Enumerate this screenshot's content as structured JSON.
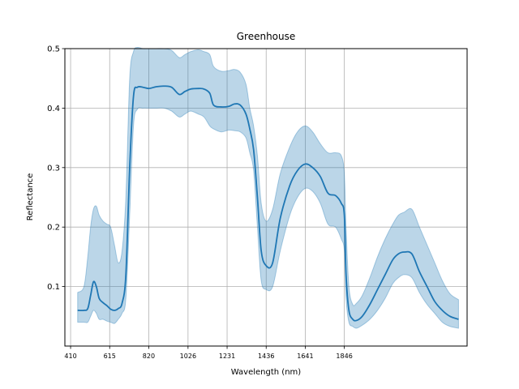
{
  "chart_data": {
    "type": "line",
    "title": "Greenhouse",
    "xlabel": "Wavelength (nm)",
    "ylabel": "Reflectance",
    "xlim": [
      380,
      2490
    ],
    "ylim": [
      0.0,
      0.5
    ],
    "x_ticks": [
      410,
      615,
      820,
      1026,
      1231,
      1436,
      1641,
      1846
    ],
    "y_ticks": [
      0.1,
      0.2,
      0.3,
      0.4,
      0.5
    ],
    "y_tick_labels": [
      "0.1",
      "0.2",
      "0.3",
      "0.4",
      "0.5"
    ],
    "grid": true,
    "colors": {
      "line": "#1f77b4",
      "band": "#1f77b4"
    },
    "series": [
      {
        "x": [
          447,
          480,
          500,
          515,
          530,
          545,
          560,
          580,
          600,
          620,
          640,
          660,
          680,
          700,
          720,
          740,
          760,
          790,
          820,
          860,
          900,
          940,
          980,
          1010,
          1040,
          1080,
          1110,
          1140,
          1160,
          1200,
          1240,
          1270,
          1300,
          1330,
          1350,
          1370,
          1390,
          1410,
          1436,
          1470,
          1510,
          1560,
          1600,
          1641,
          1680,
          1720,
          1760,
          1800,
          1830,
          1846,
          1855,
          1870,
          1890,
          1910,
          1940,
          1980,
          2020,
          2060,
          2100,
          2130,
          2160,
          2200,
          2240,
          2280,
          2320,
          2360,
          2400,
          2445
        ],
        "mean": [
          0.06,
          0.06,
          0.063,
          0.085,
          0.108,
          0.1,
          0.08,
          0.073,
          0.068,
          0.062,
          0.06,
          0.063,
          0.072,
          0.12,
          0.3,
          0.42,
          0.435,
          0.435,
          0.433,
          0.436,
          0.437,
          0.435,
          0.423,
          0.428,
          0.432,
          0.433,
          0.432,
          0.425,
          0.405,
          0.402,
          0.403,
          0.407,
          0.405,
          0.39,
          0.365,
          0.33,
          0.25,
          0.16,
          0.135,
          0.14,
          0.215,
          0.27,
          0.295,
          0.306,
          0.3,
          0.285,
          0.257,
          0.253,
          0.24,
          0.22,
          0.12,
          0.06,
          0.045,
          0.043,
          0.05,
          0.07,
          0.095,
          0.12,
          0.145,
          0.155,
          0.158,
          0.155,
          0.125,
          0.1,
          0.075,
          0.06,
          0.05,
          0.045
        ],
        "upper": [
          0.09,
          0.1,
          0.15,
          0.2,
          0.23,
          0.235,
          0.22,
          0.21,
          0.205,
          0.2,
          0.17,
          0.14,
          0.16,
          0.25,
          0.45,
          0.495,
          0.502,
          0.5,
          0.5,
          0.5,
          0.5,
          0.497,
          0.485,
          0.49,
          0.495,
          0.498,
          0.495,
          0.49,
          0.47,
          0.462,
          0.463,
          0.465,
          0.46,
          0.44,
          0.4,
          0.37,
          0.32,
          0.24,
          0.21,
          0.23,
          0.29,
          0.335,
          0.36,
          0.37,
          0.36,
          0.34,
          0.325,
          0.325,
          0.32,
          0.29,
          0.2,
          0.1,
          0.07,
          0.072,
          0.085,
          0.115,
          0.15,
          0.18,
          0.205,
          0.22,
          0.225,
          0.23,
          0.2,
          0.17,
          0.14,
          0.11,
          0.088,
          0.078
        ],
        "lower": [
          0.04,
          0.04,
          0.04,
          0.05,
          0.06,
          0.055,
          0.045,
          0.045,
          0.042,
          0.04,
          0.038,
          0.045,
          0.055,
          0.08,
          0.22,
          0.37,
          0.398,
          0.4,
          0.4,
          0.4,
          0.4,
          0.395,
          0.385,
          0.39,
          0.395,
          0.39,
          0.385,
          0.37,
          0.365,
          0.36,
          0.363,
          0.362,
          0.36,
          0.35,
          0.325,
          0.295,
          0.2,
          0.11,
          0.095,
          0.1,
          0.16,
          0.22,
          0.25,
          0.265,
          0.26,
          0.24,
          0.205,
          0.2,
          0.18,
          0.16,
          0.08,
          0.04,
          0.033,
          0.03,
          0.035,
          0.045,
          0.06,
          0.08,
          0.105,
          0.115,
          0.12,
          0.115,
          0.09,
          0.07,
          0.055,
          0.04,
          0.033,
          0.03
        ]
      }
    ]
  }
}
